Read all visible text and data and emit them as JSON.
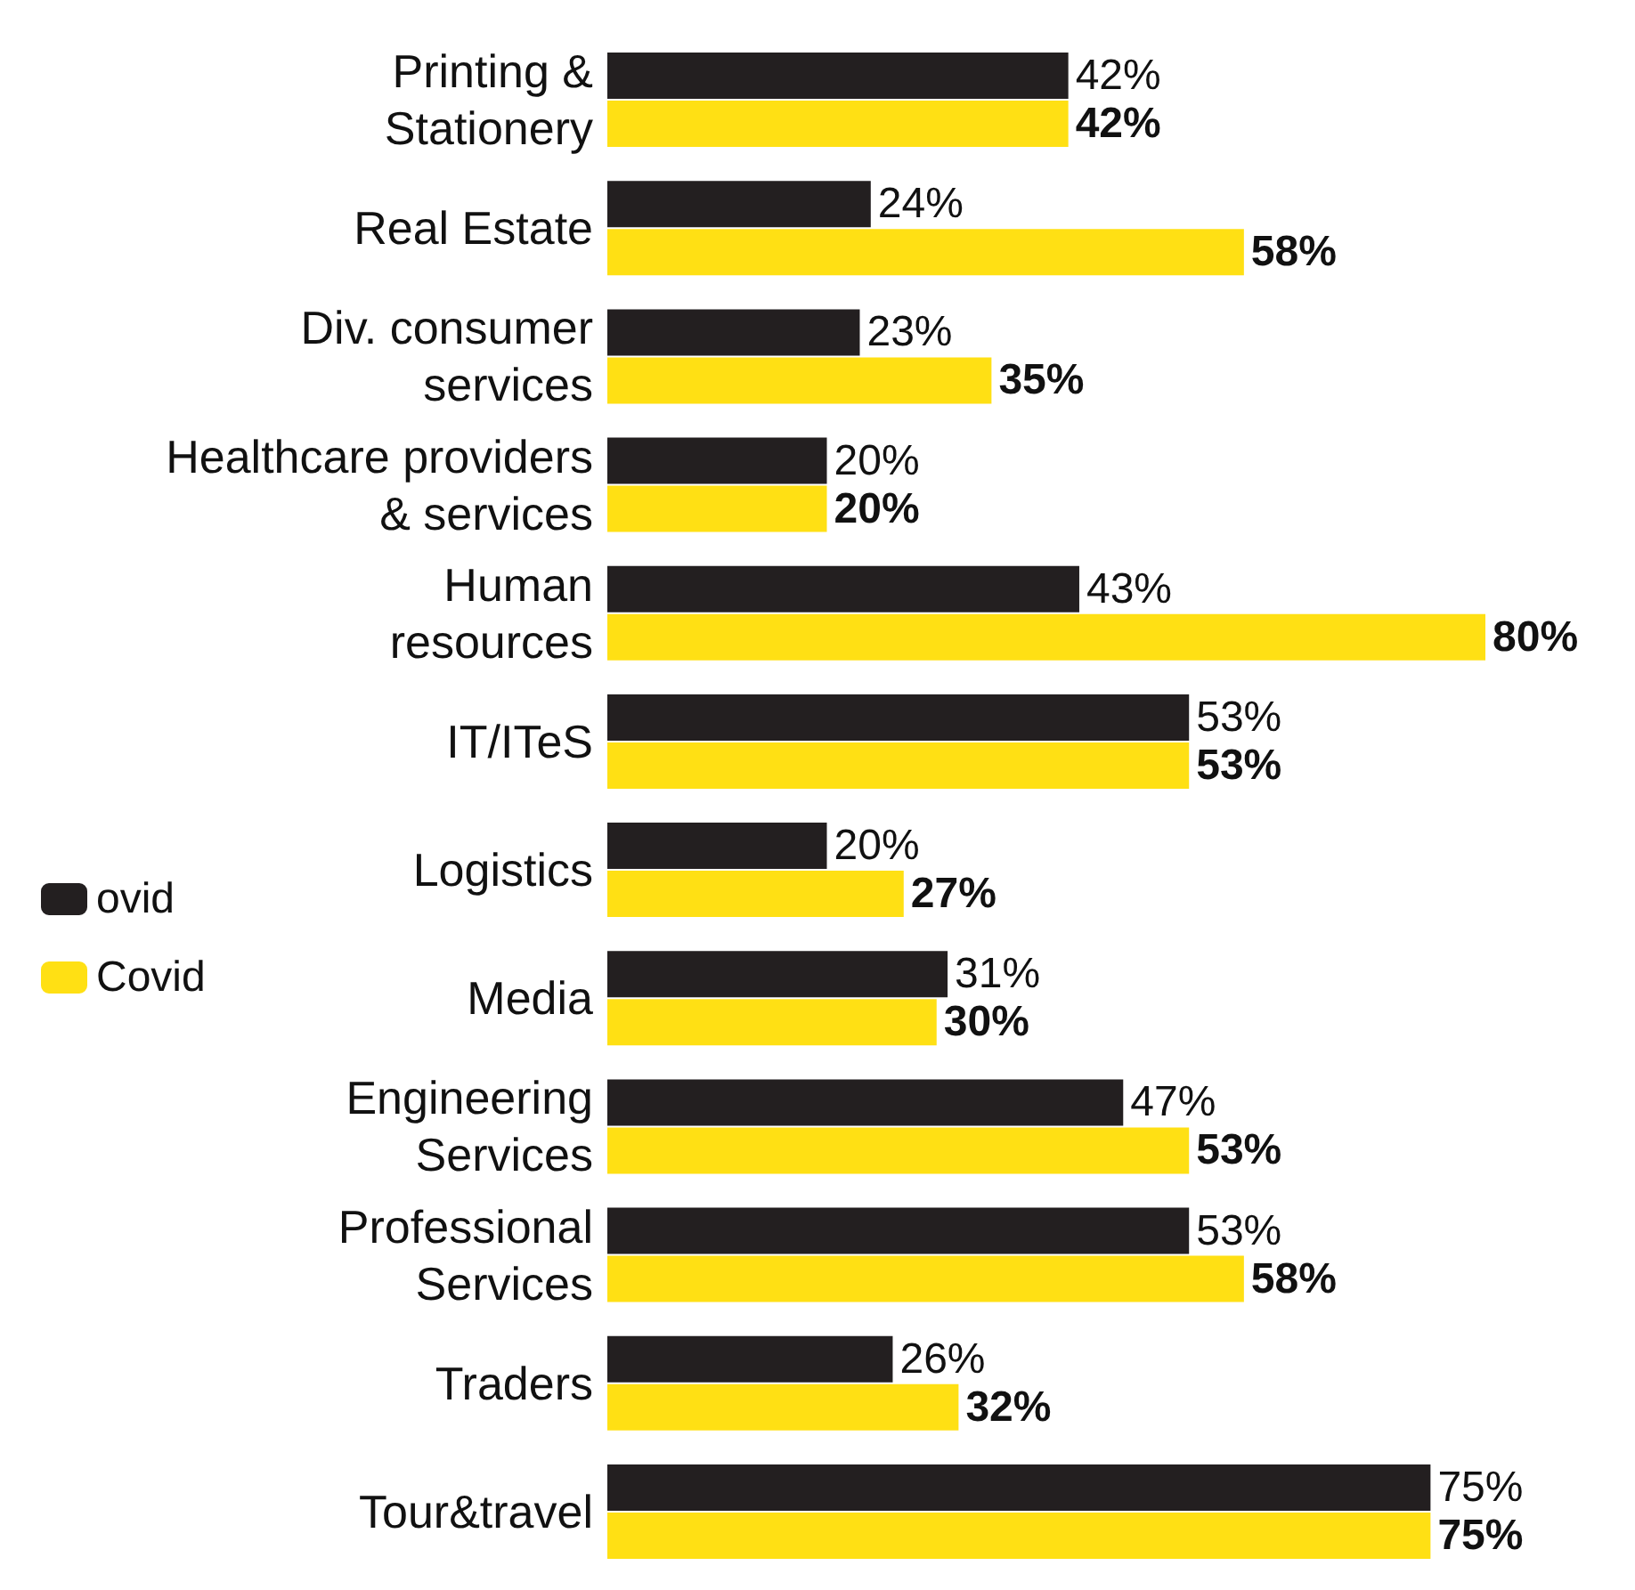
{
  "chart_data": {
    "type": "bar",
    "orientation": "horizontal",
    "categories": [
      "Printing &\nStationery",
      "Real Estate",
      "Div. consumer\nservices",
      "Healthcare providers\n& services",
      "Human\nresources",
      "IT/ITeS",
      "Logistics",
      "Media",
      "Engineering\nServices",
      "Professional\nServices",
      "Traders",
      "Tour&travel"
    ],
    "series": [
      {
        "name": "ovid",
        "color": "#231f20",
        "values": [
          42,
          24,
          23,
          20,
          43,
          53,
          20,
          31,
          47,
          53,
          26,
          75
        ],
        "value_labels": [
          "42%",
          "24%",
          "23%",
          "20%",
          "43%",
          "53%",
          "20%",
          "31%",
          "47%",
          "53%",
          "26%",
          "75%"
        ]
      },
      {
        "name": "Covid",
        "color": "#ffe014",
        "values": [
          42,
          58,
          35,
          20,
          80,
          53,
          27,
          30,
          53,
          58,
          32,
          75
        ],
        "value_labels": [
          "42%",
          "58%",
          "35%",
          "20%",
          "80%",
          "53%",
          "27%",
          "30%",
          "53%",
          "58%",
          "32%",
          "75%"
        ]
      }
    ],
    "legend": "left"
  }
}
